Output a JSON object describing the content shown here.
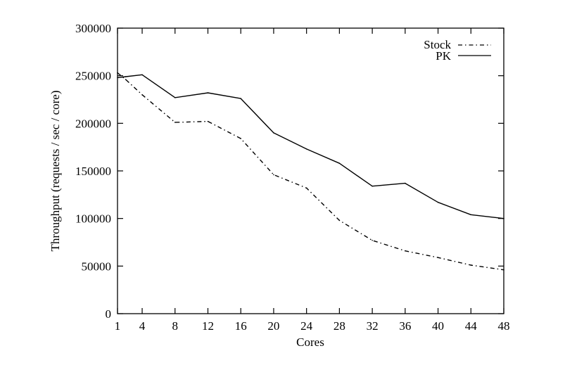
{
  "chart_data": {
    "type": "line",
    "xlabel": "Cores",
    "ylabel": "Throughput (requests / sec / core)",
    "xlim": [
      1,
      48
    ],
    "ylim": [
      0,
      300000
    ],
    "xticks": [
      1,
      4,
      8,
      12,
      16,
      20,
      24,
      28,
      32,
      36,
      40,
      44,
      48
    ],
    "yticks": [
      0,
      50000,
      100000,
      150000,
      200000,
      250000,
      300000
    ],
    "grid": false,
    "legend_position": "top-right",
    "x": [
      1,
      2,
      4,
      8,
      12,
      16,
      20,
      24,
      28,
      32,
      36,
      40,
      44,
      48
    ],
    "series": [
      {
        "name": "Stock",
        "style": "dash-dot",
        "color": "#000000",
        "values": [
          253000,
          246000,
          230000,
          201000,
          202000,
          184000,
          146000,
          132000,
          98000,
          77000,
          66000,
          59000,
          51000,
          46000
        ]
      },
      {
        "name": "PK",
        "style": "solid",
        "color": "#000000",
        "values": [
          248000,
          249000,
          251000,
          227000,
          232000,
          226000,
          190000,
          173000,
          158000,
          134000,
          137000,
          117000,
          104000,
          100000
        ]
      }
    ]
  }
}
